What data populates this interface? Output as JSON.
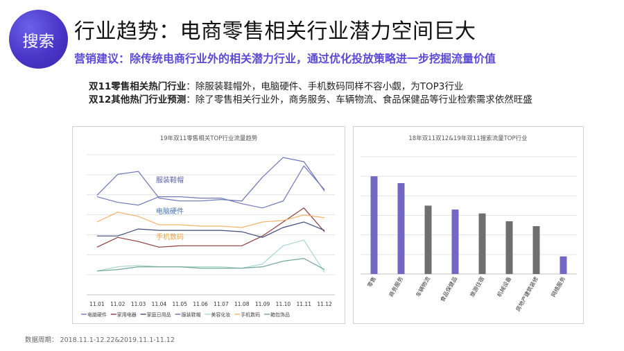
{
  "badge": {
    "label": "搜索"
  },
  "header": {
    "title": "行业趋势：电商零售相关行业潜力空间巨大",
    "subtitle": "营销建议：除传统电商行业外的相关潜力行业，通过优化投放策略进一步挖掘流量价值"
  },
  "notes": [
    {
      "bold": "双11零售相关热门行业",
      "text": "：除服装鞋帽外，电脑硬件、手机数码同样不容小觑，为TOP3行业"
    },
    {
      "bold": "双12其他热门行业预测",
      "text": "：除了零售相关行业外，商务服务、车辆物流、食品保健品等行业检索需求依然旺盛"
    }
  ],
  "footer": "数据周期： 2018.11.1-12.22&2019.11.1-11.12",
  "chart_data": [
    {
      "type": "line",
      "title": "19年双11零售相关TOP行业流量趋势",
      "x": [
        "11.01",
        "11.02",
        "11.03",
        "11.04",
        "11.05",
        "11.06",
        "11.07",
        "11.08",
        "11.09",
        "11.10",
        "11.11",
        "11.12"
      ],
      "ylim": [
        0,
        100
      ],
      "grid": true,
      "legend_position": "bottom",
      "annotations": [
        {
          "text": "服装鞋帽",
          "color": "#5a63a6"
        },
        {
          "text": "电脑硬件",
          "color": "#4a78b5"
        },
        {
          "text": "手机数码",
          "color": "#e9a24a"
        }
      ],
      "series": [
        {
          "name": "电脑硬件",
          "color": "#7178b8",
          "values": [
            70,
            66,
            64,
            70,
            70,
            69,
            69,
            65,
            62,
            67,
            92,
            75
          ]
        },
        {
          "name": "家用电器",
          "color": "#8e3a3a",
          "values": [
            34,
            41,
            38,
            34,
            35,
            35,
            35,
            35,
            42,
            52,
            62,
            45
          ]
        },
        {
          "name": "家庭日用品",
          "color": "#3f4a7a",
          "values": [
            42,
            42,
            47,
            46,
            46,
            46,
            46,
            45,
            41,
            48,
            52,
            46
          ]
        },
        {
          "name": "服装鞋帽",
          "color": "#6a76b6",
          "values": [
            71,
            86,
            88,
            69,
            67,
            67,
            68,
            67,
            84,
            98,
            95,
            74
          ]
        },
        {
          "name": "美容化妆",
          "color": "#a8d8c8",
          "values": [
            17,
            20,
            21,
            20,
            20,
            20,
            20,
            19,
            22,
            35,
            39,
            16
          ]
        },
        {
          "name": "手机数码",
          "color": "#f0b36a",
          "values": [
            52,
            59,
            56,
            50,
            50,
            49,
            49,
            48,
            52,
            53,
            57,
            55
          ]
        },
        {
          "name": "箱包饰品",
          "color": "#73a693",
          "values": [
            17,
            18,
            20,
            20,
            20,
            19,
            19,
            19,
            20,
            24,
            26,
            18
          ]
        }
      ]
    },
    {
      "type": "bar",
      "title": "18年双11双12&19年双11搜索流量TOP行业",
      "categories": [
        "零售",
        "商务服务",
        "车辆物流",
        "食品保健品",
        "旅游住宿",
        "机械设备",
        "房地产建筑装修",
        "网络服务"
      ],
      "values": [
        100,
        93,
        70,
        66,
        62,
        54,
        49,
        18
      ],
      "colors": [
        "#7268c4",
        "#7268c4",
        "#6f6f6f",
        "#7268c4",
        "#6f6f6f",
        "#6f6f6f",
        "#6f6f6f",
        "#7268c4"
      ],
      "ylim": [
        0,
        120
      ],
      "grid": true
    }
  ]
}
